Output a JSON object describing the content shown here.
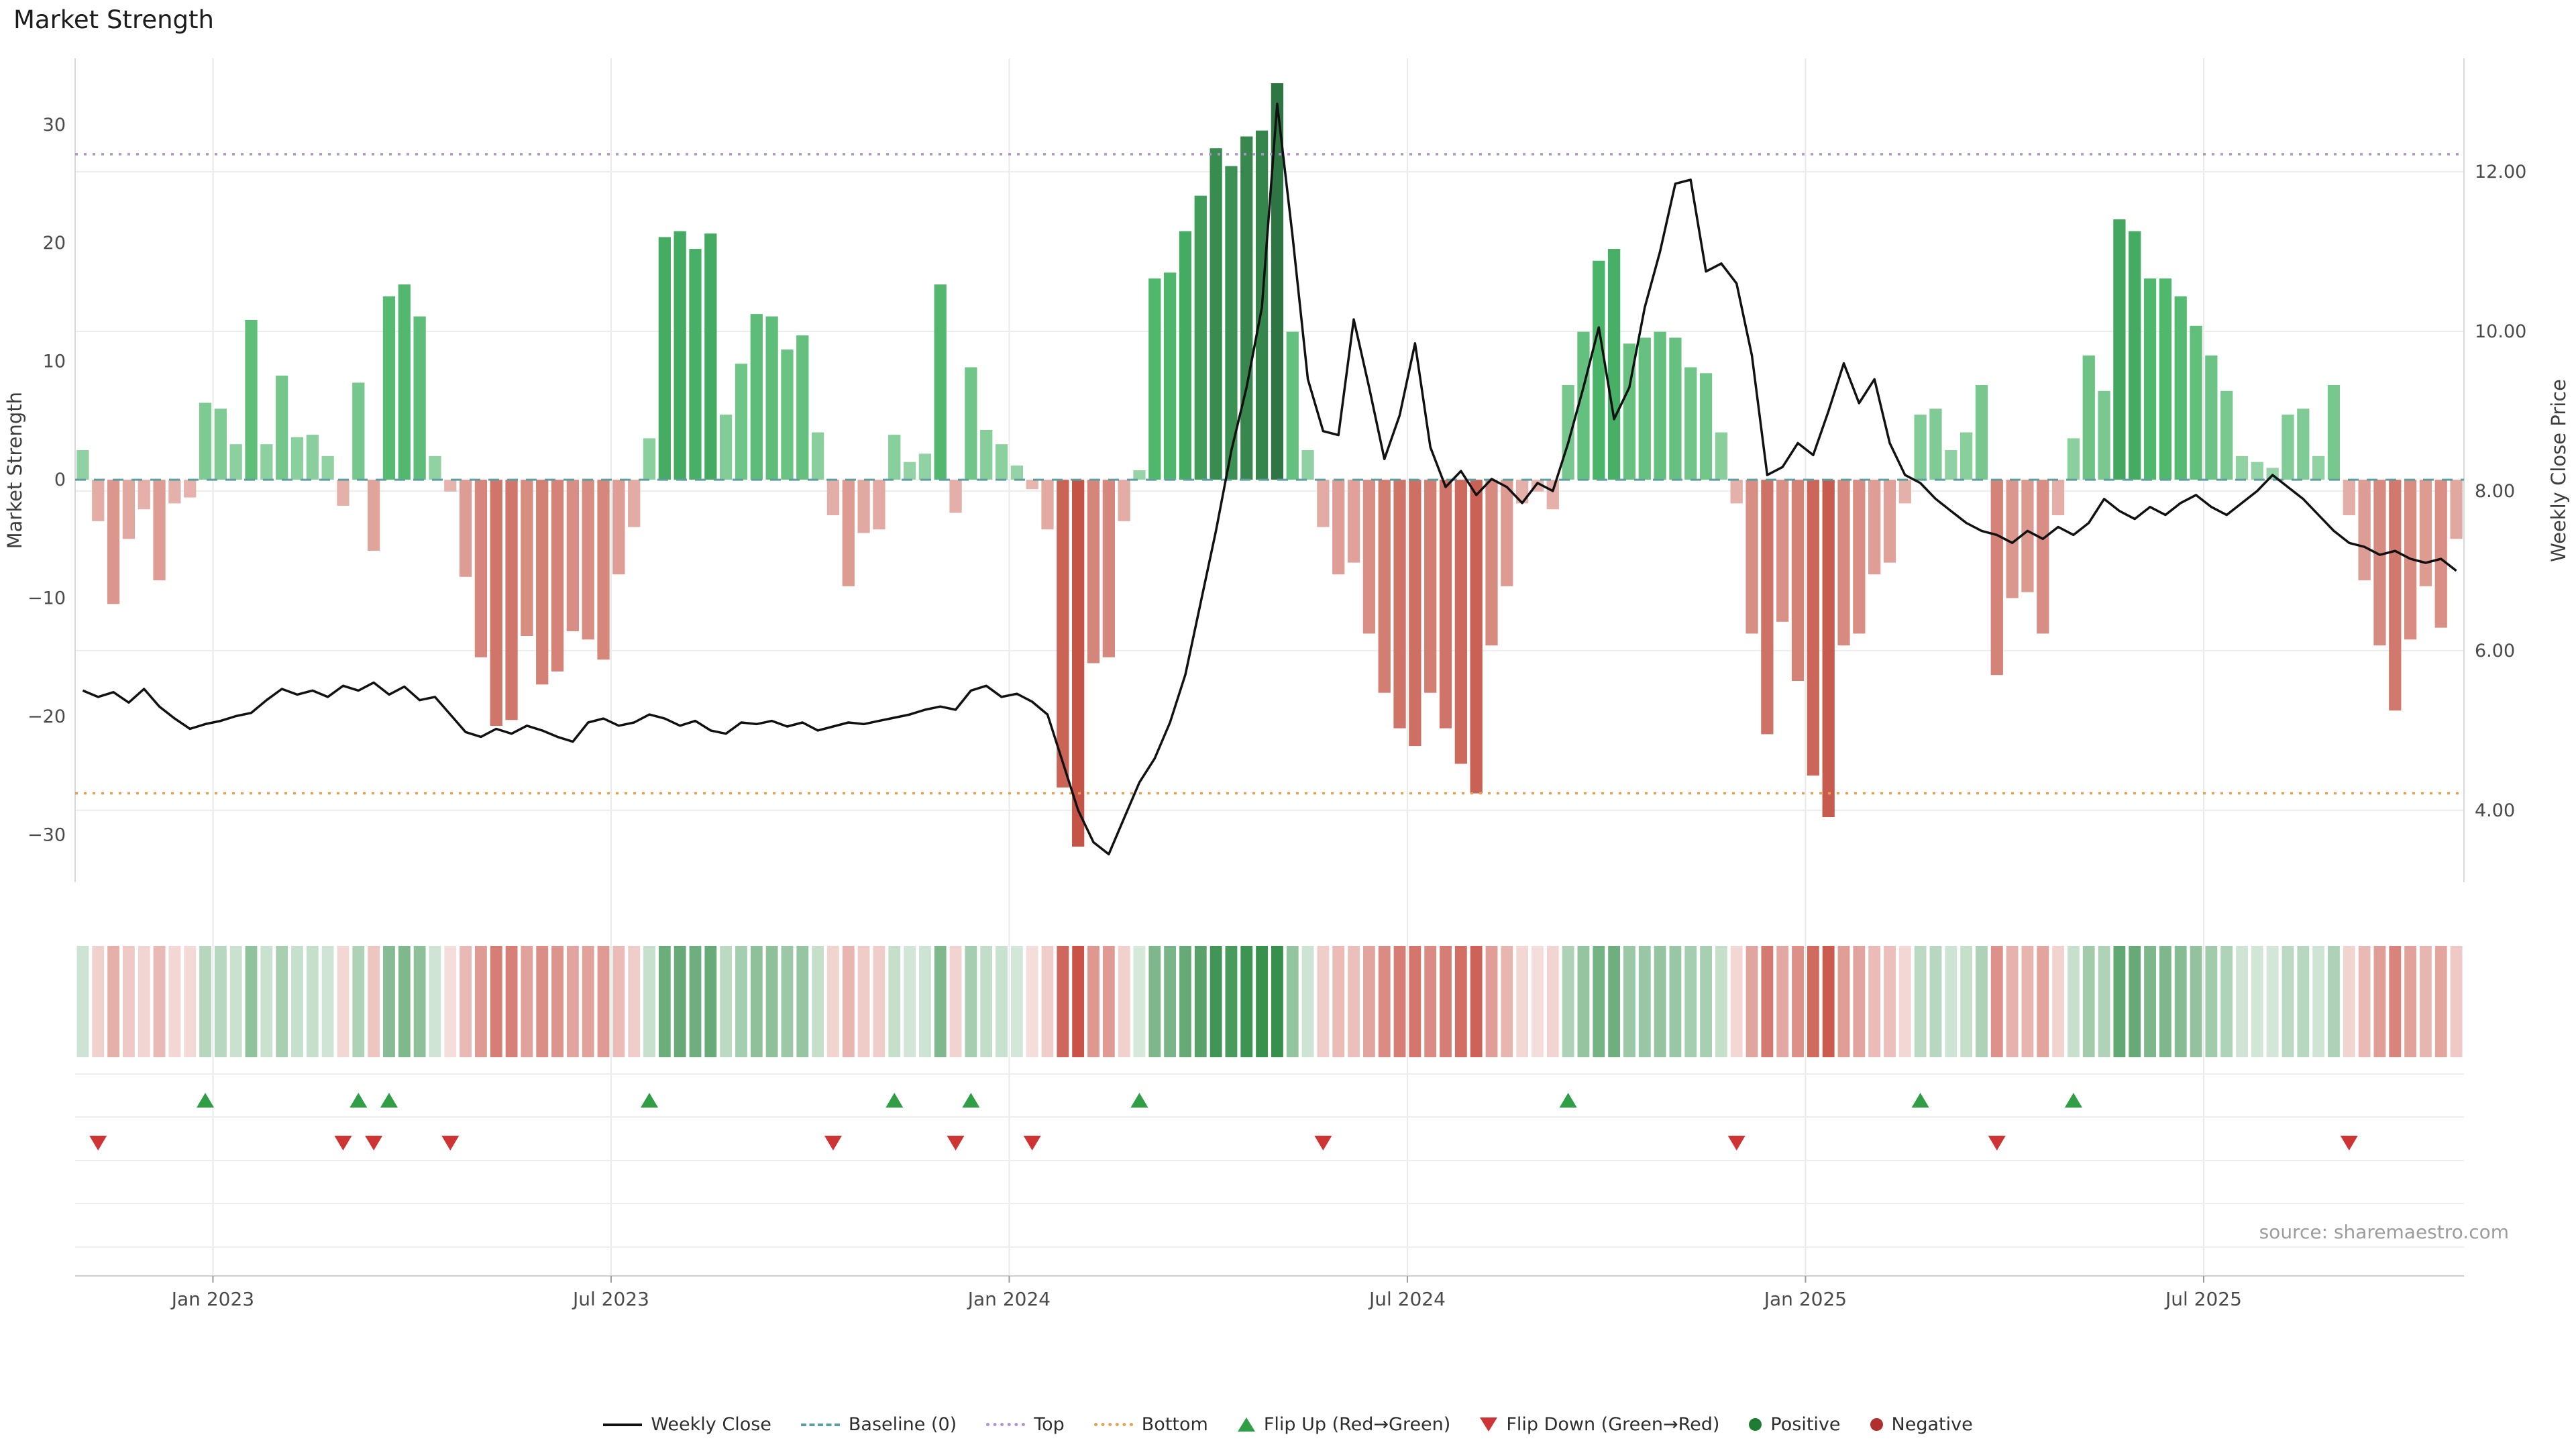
{
  "title": "Market Strength",
  "source": "source: sharemaestro.com",
  "chart_data": {
    "type": "bar",
    "subtype": "bar-with-line-overlay-heatstrip-and-flip-markers",
    "title": "Market Strength",
    "ylabel": "Market Strength",
    "y2label": "Weekly Close Price",
    "n_points": 156,
    "ylim": [
      -34,
      35.6
    ],
    "y2lim": [
      3.1,
      13.42
    ],
    "grid": "horizontal-on-right-axis-ticks, vertical-on-date-ticks",
    "x_axis": {
      "unit": "weekly",
      "ticks": [
        {
          "label": "Jan 2023",
          "index": 9
        },
        {
          "label": "Jul 2023",
          "index": 35
        },
        {
          "label": "Jan 2024",
          "index": 61
        },
        {
          "label": "Jul 2024",
          "index": 87
        },
        {
          "label": "Jan 2025",
          "index": 113
        },
        {
          "label": "Jul 2025",
          "index": 139
        }
      ]
    },
    "y_ticks_left": {
      "labels": [
        "30",
        "20",
        "10",
        "0",
        "−10",
        "−20",
        "−30"
      ],
      "values": [
        30,
        20,
        10,
        0,
        -10,
        -20,
        -30
      ]
    },
    "y_ticks_right": {
      "labels": [
        "12.00",
        "10.00",
        "8.00",
        "6.00",
        "4.00"
      ],
      "values": [
        12,
        10,
        8,
        6,
        4
      ]
    },
    "reference_lines": {
      "baseline": {
        "value": 0,
        "label": "Baseline (0)",
        "color": "#5f9ea0",
        "style": "dashed"
      },
      "top": {
        "value": 27.5,
        "label": "Top",
        "color": "#b294c7",
        "style": "dotted"
      },
      "bottom": {
        "value": -26.5,
        "label": "Bottom",
        "color": "#e2a255",
        "style": "dotted"
      }
    },
    "series": [
      {
        "name": "Market Strength",
        "type": "bar",
        "axis": "left",
        "positive_color": "#2e8b57",
        "negative_color": "#c0544a",
        "values": [
          2.5,
          -3.5,
          -10.5,
          -5,
          -2.5,
          -8.5,
          -2,
          -1.5,
          6.5,
          6,
          3,
          13.5,
          3,
          8.8,
          3.6,
          3.8,
          2,
          -2.2,
          8.2,
          -6,
          15.5,
          16.5,
          13.8,
          2,
          -1,
          -8.2,
          -15,
          -20.8,
          -20.3,
          -13.2,
          -17.3,
          -16.2,
          -12.8,
          -13.5,
          -15.2,
          -8,
          -4,
          3.5,
          20.5,
          21,
          19.5,
          20.8,
          5.5,
          9.8,
          14,
          13.8,
          11,
          12.2,
          4,
          -3,
          -9,
          -4.5,
          -4.2,
          3.8,
          1.5,
          2.2,
          16.5,
          -2.8,
          9.5,
          4.2,
          3,
          1.2,
          -0.8,
          -4.2,
          -26,
          -31,
          -15.5,
          -15,
          -3.5,
          0.8,
          17,
          17.5,
          21,
          24,
          28,
          26.5,
          29,
          29.5,
          33.5,
          12.5,
          2.5,
          -4,
          -8,
          -7,
          -13,
          -18,
          -21,
          -22.5,
          -18,
          -21,
          -24,
          -26.5,
          -14,
          -9,
          -2,
          -1,
          -2.5,
          8,
          12.5,
          18.5,
          19.5,
          11.5,
          12,
          12.5,
          12,
          9.5,
          9,
          4,
          -2,
          -13,
          -21.5,
          -12,
          -17,
          -25,
          -28.5,
          -14,
          -13,
          -8,
          -7,
          -2,
          5.5,
          6,
          2.5,
          4,
          8,
          -16.5,
          -10,
          -9.5,
          -13,
          -3,
          3.5,
          10.5,
          7.5,
          22,
          21,
          17,
          17,
          15.5,
          13,
          10.5,
          7.5,
          2,
          1.5,
          1,
          5.5,
          6,
          2,
          8,
          -3,
          -8.5,
          -14,
          -19.5,
          -13.5,
          -9,
          -12.5,
          -5
        ]
      },
      {
        "name": "Weekly Close",
        "type": "line",
        "axis": "right",
        "color": "#111111",
        "values": [
          5.5,
          5.42,
          5.48,
          5.35,
          5.52,
          5.3,
          5.15,
          5.02,
          5.08,
          5.12,
          5.18,
          5.22,
          5.38,
          5.52,
          5.45,
          5.5,
          5.42,
          5.56,
          5.5,
          5.6,
          5.45,
          5.55,
          5.38,
          5.42,
          5.2,
          4.98,
          4.92,
          5.02,
          4.96,
          5.06,
          5.0,
          4.92,
          4.86,
          5.1,
          5.15,
          5.06,
          5.1,
          5.2,
          5.15,
          5.06,
          5.12,
          5.0,
          4.96,
          5.1,
          5.08,
          5.12,
          5.05,
          5.1,
          5.0,
          5.05,
          5.1,
          5.08,
          5.12,
          5.16,
          5.2,
          5.26,
          5.3,
          5.26,
          5.5,
          5.56,
          5.42,
          5.46,
          5.36,
          5.2,
          4.6,
          4.0,
          3.6,
          3.45,
          3.9,
          4.35,
          4.65,
          5.1,
          5.7,
          6.6,
          7.5,
          8.5,
          9.3,
          10.3,
          12.85,
          11.2,
          9.4,
          8.75,
          8.7,
          10.15,
          9.3,
          8.4,
          8.95,
          9.85,
          8.55,
          8.05,
          8.25,
          7.95,
          8.15,
          8.05,
          7.85,
          8.1,
          8.0,
          8.6,
          9.3,
          10.05,
          8.9,
          9.3,
          10.3,
          11.0,
          11.85,
          11.9,
          10.75,
          10.85,
          10.6,
          9.7,
          8.2,
          8.3,
          8.6,
          8.45,
          9.0,
          9.6,
          9.1,
          9.4,
          8.6,
          8.2,
          8.1,
          7.9,
          7.75,
          7.6,
          7.5,
          7.45,
          7.35,
          7.5,
          7.4,
          7.55,
          7.45,
          7.6,
          7.9,
          7.75,
          7.65,
          7.8,
          7.7,
          7.85,
          7.95,
          7.8,
          7.7,
          7.85,
          8.0,
          8.2,
          8.05,
          7.9,
          7.7,
          7.5,
          7.35,
          7.3,
          7.2,
          7.25,
          7.15,
          7.1,
          7.15,
          7.0
        ]
      }
    ],
    "heatstrip": "colored weekly cells derived from Market Strength values (green positive, red negative, intensity = magnitude)",
    "flip_markers": "computed from sign changes of Market Strength: up where red→green, down where green→red"
  },
  "legend": {
    "items": [
      {
        "label": "Weekly Close",
        "symbol": "line",
        "color": "#111111"
      },
      {
        "label": "Baseline (0)",
        "symbol": "dashed-line",
        "color": "#5f9ea0"
      },
      {
        "label": "Top",
        "symbol": "dotted-line",
        "color": "#b294c7"
      },
      {
        "label": "Bottom",
        "symbol": "dotted-line",
        "color": "#e2a255"
      },
      {
        "label": "Flip Up (Red→Green)",
        "symbol": "triangle-up",
        "color": "#2f9e44"
      },
      {
        "label": "Flip Down (Green→Red)",
        "symbol": "triangle-down",
        "color": "#cf3434"
      },
      {
        "label": "Positive",
        "symbol": "circle",
        "color": "#1e7d32"
      },
      {
        "label": "Negative",
        "symbol": "circle",
        "color": "#b03030"
      }
    ]
  }
}
